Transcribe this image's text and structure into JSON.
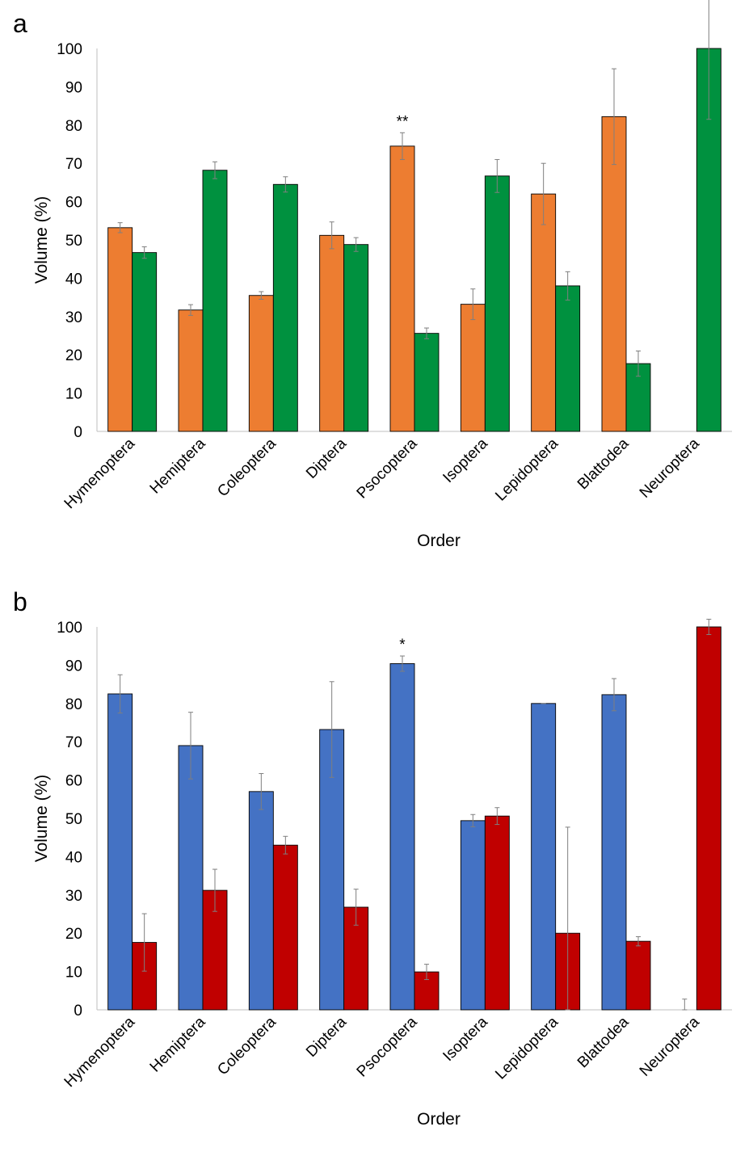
{
  "chart_data": [
    {
      "type": "bar",
      "panel_label": "a",
      "categories": [
        "Hymenoptera",
        "Hemiptera",
        "Coleoptera",
        "Diptera",
        "Psocoptera",
        "Isoptera",
        "Lepidoptera",
        "Blattodea",
        "Neuroptera"
      ],
      "series": [
        {
          "color": "#ED7D31",
          "values": [
            53.2,
            31.7,
            35.5,
            51.2,
            74.5,
            33.2,
            62.0,
            82.2,
            0
          ],
          "errors": [
            1.3,
            1.4,
            1.0,
            3.5,
            3.5,
            4.0,
            8.0,
            12.5,
            0
          ]
        },
        {
          "color": "#00913F",
          "values": [
            46.7,
            68.2,
            64.5,
            48.8,
            25.6,
            66.7,
            38.0,
            17.7,
            100
          ],
          "errors": [
            1.5,
            2.2,
            2.0,
            1.8,
            1.4,
            4.3,
            3.7,
            3.3,
            18.5
          ]
        }
      ],
      "annotations": [
        {
          "category": "Psocoptera",
          "text": "**"
        }
      ],
      "xlabel": "Order",
      "ylabel": "Volume (%)",
      "ylim": [
        0,
        100
      ],
      "yticks": [
        0,
        10,
        20,
        30,
        40,
        50,
        60,
        70,
        80,
        90,
        100
      ],
      "grid": false,
      "legend": false
    },
    {
      "type": "bar",
      "panel_label": "b",
      "categories": [
        "Hymenoptera",
        "Hemiptera",
        "Coleoptera",
        "Diptera",
        "Psocoptera",
        "Isoptera",
        "Lepidoptera",
        "Blattodea",
        "Neuroptera"
      ],
      "series": [
        {
          "color": "#4472C4",
          "values": [
            82.5,
            69.0,
            57.0,
            73.2,
            90.4,
            49.4,
            80.0,
            82.3,
            0
          ],
          "errors": [
            5.0,
            8.7,
            4.7,
            12.5,
            2.0,
            1.6,
            0,
            4.2,
            2.8
          ]
        },
        {
          "color": "#C00000",
          "values": [
            17.6,
            31.2,
            43.0,
            26.8,
            9.9,
            50.6,
            20.0,
            17.9,
            100
          ],
          "errors": [
            7.5,
            5.5,
            2.3,
            4.7,
            2.0,
            2.2,
            27.7,
            1.2,
            2.0
          ]
        }
      ],
      "annotations": [
        {
          "category": "Psocoptera",
          "text": "*"
        }
      ],
      "xlabel": "Order",
      "ylabel": "Volume (%)",
      "ylim": [
        0,
        100
      ],
      "yticks": [
        0,
        10,
        20,
        30,
        40,
        50,
        60,
        70,
        80,
        90,
        100
      ],
      "grid": false,
      "legend": false
    }
  ]
}
